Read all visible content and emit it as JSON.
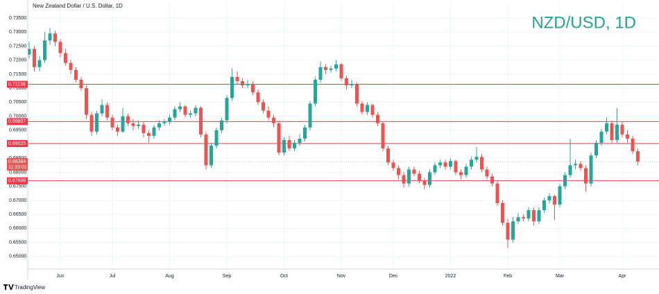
{
  "chart_data": {
    "type": "candlestick",
    "title": "New Zealand Dollar / U.S. Dollar, 1D",
    "watermark": "NZD/USD, 1D",
    "categories": [
      null,
      null,
      null,
      null,
      null,
      null,
      "Jun",
      null,
      null,
      null,
      null,
      null,
      null,
      null,
      null,
      null,
      "Jul",
      null,
      null,
      null,
      null,
      null,
      null,
      null,
      null,
      null,
      null,
      "Aug",
      null,
      null,
      null,
      null,
      null,
      null,
      null,
      null,
      null,
      null,
      "Sep",
      null,
      null,
      null,
      null,
      null,
      null,
      null,
      null,
      null,
      null,
      "Oct",
      null,
      null,
      null,
      null,
      null,
      null,
      null,
      null,
      null,
      null,
      "Nov",
      null,
      null,
      null,
      null,
      null,
      null,
      null,
      null,
      null,
      "Dec",
      null,
      null,
      null,
      null,
      null,
      null,
      null,
      null,
      null,
      null,
      "2022",
      null,
      null,
      null,
      null,
      null,
      null,
      null,
      null,
      null,
      null,
      "Feb",
      null,
      null,
      null,
      null,
      null,
      null,
      null,
      null,
      null,
      "Mar",
      null,
      null,
      null,
      null,
      null,
      null,
      null,
      null,
      null,
      null,
      null,
      "Apr",
      null,
      null,
      null
    ],
    "ohlc": [
      [
        0.722,
        0.7265,
        0.7205,
        0.724
      ],
      [
        0.724,
        0.725,
        0.716,
        0.7175
      ],
      [
        0.7175,
        0.7215,
        0.716,
        0.72
      ],
      [
        0.72,
        0.73,
        0.719,
        0.727
      ],
      [
        0.727,
        0.7315,
        0.7255,
        0.7295
      ],
      [
        0.7295,
        0.7305,
        0.725,
        0.7265
      ],
      [
        0.7265,
        0.7275,
        0.721,
        0.7225
      ],
      [
        0.7225,
        0.724,
        0.718,
        0.719
      ],
      [
        0.719,
        0.72,
        0.715,
        0.7165
      ],
      [
        0.7165,
        0.7175,
        0.712,
        0.713
      ],
      [
        0.713,
        0.714,
        0.709,
        0.71
      ],
      [
        0.71,
        0.711,
        0.699,
        0.7005
      ],
      [
        0.7005,
        0.7015,
        0.693,
        0.6945
      ],
      [
        0.6945,
        0.702,
        0.6935,
        0.701
      ],
      [
        0.701,
        0.706,
        0.7,
        0.704
      ],
      [
        0.704,
        0.705,
        0.6985,
        0.6995
      ],
      [
        0.6995,
        0.7005,
        0.695,
        0.696
      ],
      [
        0.696,
        0.697,
        0.693,
        0.6945
      ],
      [
        0.6945,
        0.703,
        0.694,
        0.7
      ],
      [
        0.7,
        0.701,
        0.6965,
        0.6975
      ],
      [
        0.6975,
        0.699,
        0.695,
        0.6965
      ],
      [
        0.6965,
        0.6985,
        0.6955,
        0.697
      ],
      [
        0.697,
        0.698,
        0.6925,
        0.694
      ],
      [
        0.694,
        0.695,
        0.6905,
        0.693
      ],
      [
        0.693,
        0.697,
        0.692,
        0.696
      ],
      [
        0.696,
        0.6985,
        0.695,
        0.6975
      ],
      [
        0.6975,
        0.699,
        0.6965,
        0.698
      ],
      [
        0.698,
        0.7005,
        0.697,
        0.6995
      ],
      [
        0.6995,
        0.7035,
        0.6985,
        0.7025
      ],
      [
        0.7025,
        0.705,
        0.7015,
        0.7035
      ],
      [
        0.7035,
        0.704,
        0.6995,
        0.7005
      ],
      [
        0.7005,
        0.702,
        0.6995,
        0.701
      ],
      [
        0.701,
        0.704,
        0.7,
        0.703
      ],
      [
        0.703,
        0.7035,
        0.6925,
        0.6935
      ],
      [
        0.6935,
        0.6945,
        0.681,
        0.6825
      ],
      [
        0.6825,
        0.6905,
        0.6815,
        0.6895
      ],
      [
        0.6895,
        0.696,
        0.6885,
        0.695
      ],
      [
        0.695,
        0.6995,
        0.694,
        0.6985
      ],
      [
        0.6985,
        0.7075,
        0.6975,
        0.7065
      ],
      [
        0.7065,
        0.717,
        0.7055,
        0.714
      ],
      [
        0.714,
        0.716,
        0.7115,
        0.7125
      ],
      [
        0.7125,
        0.7135,
        0.71,
        0.711
      ],
      [
        0.711,
        0.713,
        0.71,
        0.7115
      ],
      [
        0.7115,
        0.7125,
        0.7075,
        0.7085
      ],
      [
        0.7085,
        0.7095,
        0.704,
        0.705
      ],
      [
        0.705,
        0.706,
        0.701,
        0.702
      ],
      [
        0.702,
        0.7035,
        0.6985,
        0.6995
      ],
      [
        0.6995,
        0.7005,
        0.696,
        0.6975
      ],
      [
        0.6975,
        0.6985,
        0.686,
        0.687
      ],
      [
        0.687,
        0.6925,
        0.686,
        0.6915
      ],
      [
        0.6915,
        0.693,
        0.6875,
        0.6885
      ],
      [
        0.6885,
        0.6915,
        0.6875,
        0.6905
      ],
      [
        0.6905,
        0.6935,
        0.6895,
        0.692
      ],
      [
        0.692,
        0.697,
        0.691,
        0.696
      ],
      [
        0.696,
        0.7055,
        0.695,
        0.7045
      ],
      [
        0.7045,
        0.714,
        0.7035,
        0.713
      ],
      [
        0.713,
        0.7195,
        0.712,
        0.7175
      ],
      [
        0.7175,
        0.7185,
        0.715,
        0.7165
      ],
      [
        0.7165,
        0.718,
        0.7155,
        0.717
      ],
      [
        0.717,
        0.72,
        0.716,
        0.7185
      ],
      [
        0.7185,
        0.719,
        0.7125,
        0.7135
      ],
      [
        0.7135,
        0.7145,
        0.7095,
        0.711
      ],
      [
        0.711,
        0.713,
        0.71,
        0.7115
      ],
      [
        0.7115,
        0.712,
        0.7035,
        0.7045
      ],
      [
        0.7045,
        0.7055,
        0.7005,
        0.7015
      ],
      [
        0.7015,
        0.705,
        0.7005,
        0.704
      ],
      [
        0.704,
        0.7045,
        0.6995,
        0.7005
      ],
      [
        0.7005,
        0.7015,
        0.6965,
        0.6975
      ],
      [
        0.6975,
        0.698,
        0.6875,
        0.6885
      ],
      [
        0.6885,
        0.6895,
        0.6825,
        0.6835
      ],
      [
        0.6835,
        0.6845,
        0.6805,
        0.6815
      ],
      [
        0.6815,
        0.6825,
        0.6775,
        0.679
      ],
      [
        0.679,
        0.68,
        0.6745,
        0.676
      ],
      [
        0.676,
        0.682,
        0.675,
        0.681
      ],
      [
        0.681,
        0.682,
        0.6785,
        0.6795
      ],
      [
        0.6795,
        0.6805,
        0.676,
        0.677
      ],
      [
        0.677,
        0.678,
        0.674,
        0.6755
      ],
      [
        0.6755,
        0.681,
        0.6745,
        0.68
      ],
      [
        0.68,
        0.6835,
        0.679,
        0.6825
      ],
      [
        0.6825,
        0.6845,
        0.6815,
        0.6835
      ],
      [
        0.6835,
        0.6845,
        0.681,
        0.682
      ],
      [
        0.682,
        0.685,
        0.681,
        0.684
      ],
      [
        0.684,
        0.6845,
        0.679,
        0.68
      ],
      [
        0.68,
        0.681,
        0.6775,
        0.679
      ],
      [
        0.679,
        0.683,
        0.678,
        0.682
      ],
      [
        0.682,
        0.6855,
        0.681,
        0.6845
      ],
      [
        0.6845,
        0.689,
        0.6835,
        0.6855
      ],
      [
        0.6855,
        0.6865,
        0.68,
        0.681
      ],
      [
        0.681,
        0.682,
        0.6775,
        0.6785
      ],
      [
        0.6785,
        0.6795,
        0.675,
        0.676
      ],
      [
        0.676,
        0.677,
        0.668,
        0.669
      ],
      [
        0.669,
        0.67,
        0.661,
        0.662
      ],
      [
        0.662,
        0.6635,
        0.653,
        0.656
      ],
      [
        0.656,
        0.664,
        0.655,
        0.6625
      ],
      [
        0.6625,
        0.6655,
        0.6615,
        0.664
      ],
      [
        0.664,
        0.665,
        0.6625,
        0.6635
      ],
      [
        0.6635,
        0.6675,
        0.6625,
        0.6665
      ],
      [
        0.6665,
        0.6675,
        0.661,
        0.6625
      ],
      [
        0.6625,
        0.6675,
        0.6615,
        0.6665
      ],
      [
        0.6665,
        0.671,
        0.6655,
        0.67
      ],
      [
        0.67,
        0.6725,
        0.669,
        0.6715
      ],
      [
        0.6715,
        0.672,
        0.663,
        0.6685
      ],
      [
        0.6685,
        0.676,
        0.6675,
        0.675
      ],
      [
        0.675,
        0.68,
        0.674,
        0.679
      ],
      [
        0.679,
        0.692,
        0.678,
        0.6825
      ],
      [
        0.6825,
        0.6845,
        0.681,
        0.683
      ],
      [
        0.683,
        0.684,
        0.6805,
        0.6815
      ],
      [
        0.6815,
        0.6825,
        0.673,
        0.676
      ],
      [
        0.676,
        0.687,
        0.675,
        0.686
      ],
      [
        0.686,
        0.6915,
        0.685,
        0.6905
      ],
      [
        0.6905,
        0.6955,
        0.6895,
        0.6945
      ],
      [
        0.6945,
        0.6995,
        0.6935,
        0.6975
      ],
      [
        0.6975,
        0.6985,
        0.6905,
        0.6915
      ],
      [
        0.6915,
        0.703,
        0.6905,
        0.697
      ],
      [
        0.697,
        0.698,
        0.6925,
        0.6935
      ],
      [
        0.6935,
        0.695,
        0.6905,
        0.692
      ],
      [
        0.692,
        0.693,
        0.6865,
        0.6875
      ],
      [
        0.6875,
        0.6885,
        0.6825,
        0.68384
      ]
    ],
    "up_color": "#26a69a",
    "down_color": "#ef5350",
    "ylim": [
      0.6455,
      0.7402
    ],
    "yticks": [
      {
        "value": 0.65,
        "label": "0.65000"
      },
      {
        "value": 0.655,
        "label": "0.65500"
      },
      {
        "value": 0.66,
        "label": "0.66000"
      },
      {
        "value": 0.665,
        "label": "0.66500"
      },
      {
        "value": 0.67,
        "label": "0.67000"
      },
      {
        "value": 0.675,
        "label": "0.67500"
      },
      {
        "value": 0.68,
        "label": "0.68000"
      },
      {
        "value": 0.685,
        "label": "0.68500"
      },
      {
        "value": 0.69,
        "label": "0.69000"
      },
      {
        "value": 0.695,
        "label": "0.69500"
      },
      {
        "value": 0.7,
        "label": "0.70000"
      },
      {
        "value": 0.705,
        "label": "0.70500"
      },
      {
        "value": 0.71,
        "label": "0.71000"
      },
      {
        "value": 0.715,
        "label": "0.71500"
      },
      {
        "value": 0.72,
        "label": "0.72000"
      },
      {
        "value": 0.725,
        "label": "0.72500"
      },
      {
        "value": 0.73,
        "label": "0.73000"
      },
      {
        "value": 0.735,
        "label": "0.73500"
      }
    ],
    "grid": true,
    "levels": [
      0.71138,
      0.69807,
      0.69025,
      0.67698
    ],
    "level_color": "#f23645",
    "countdown": "11:33:01"
  },
  "footer": {
    "logo": "TradingView"
  }
}
